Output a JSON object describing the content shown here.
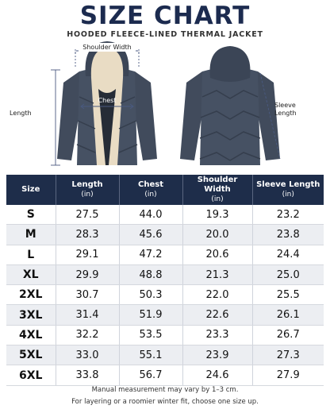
{
  "header": {
    "title": "SIZE CHART",
    "subtitle": "HOODED FLEECE-LINED THERMAL JACKET"
  },
  "diagram": {
    "shoulder_width": "Shoulder Width",
    "chest": "Chest",
    "length": "Length",
    "sleeve_length": "Sleeve Length"
  },
  "table": {
    "columns": [
      {
        "name": "Size"
      },
      {
        "name": "Length",
        "unit": "(in)"
      },
      {
        "name": "Chest",
        "unit": "(in)"
      },
      {
        "name": "Shoulder Width",
        "unit": "(in)"
      },
      {
        "name": "Sleeve Length",
        "unit": "(in)"
      }
    ],
    "rows": [
      [
        "S",
        "27.5",
        "44.0",
        "19.3",
        "23.2"
      ],
      [
        "M",
        "28.3",
        "45.6",
        "20.0",
        "23.8"
      ],
      [
        "L",
        "29.1",
        "47.2",
        "20.6",
        "24.4"
      ],
      [
        "XL",
        "29.9",
        "48.8",
        "21.3",
        "25.0"
      ],
      [
        "2XL",
        "30.7",
        "50.3",
        "22.0",
        "25.5"
      ],
      [
        "3XL",
        "31.4",
        "51.9",
        "22.6",
        "26.1"
      ],
      [
        "4XL",
        "32.2",
        "53.5",
        "23.3",
        "26.7"
      ],
      [
        "5XL",
        "33.0",
        "55.1",
        "23.9",
        "27.3"
      ],
      [
        "6XL",
        "33.8",
        "56.7",
        "24.6",
        "27.9"
      ]
    ]
  },
  "notes": [
    "Manual measurement may vary by 1–3 cm.",
    "For layering or a roomier winter fit, choose one size up."
  ]
}
